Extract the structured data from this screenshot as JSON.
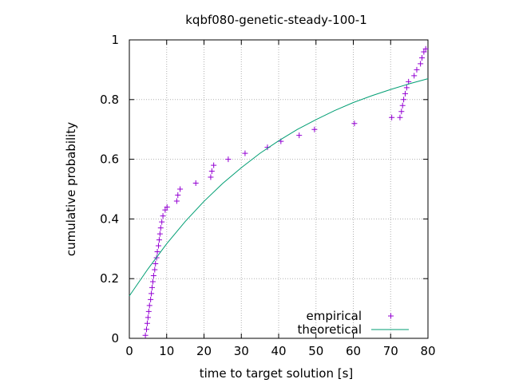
{
  "chart_data": {
    "type": "scatter",
    "title": "kqbf080-genetic-steady-100-1",
    "xlabel": "time to target solution [s]",
    "ylabel": "cumulative probability",
    "xlim": [
      0,
      80
    ],
    "ylim": [
      0,
      1
    ],
    "xticks": [
      "0",
      "10",
      "20",
      "30",
      "40",
      "50",
      "60",
      "70",
      "80"
    ],
    "yticks": [
      "0",
      "0.2",
      "0.4",
      "0.6",
      "0.8",
      "1"
    ],
    "grid": true,
    "legend_position": "bottom-right",
    "series": [
      {
        "name": "empirical",
        "kind": "points",
        "marker": "+",
        "color": "#9400d3",
        "points": [
          [
            4.3,
            0.01
          ],
          [
            4.6,
            0.03
          ],
          [
            4.8,
            0.05
          ],
          [
            5.0,
            0.07
          ],
          [
            5.2,
            0.09
          ],
          [
            5.4,
            0.11
          ],
          [
            5.7,
            0.13
          ],
          [
            5.9,
            0.15
          ],
          [
            6.1,
            0.17
          ],
          [
            6.3,
            0.19
          ],
          [
            6.5,
            0.21
          ],
          [
            6.8,
            0.23
          ],
          [
            7.0,
            0.25
          ],
          [
            7.3,
            0.27
          ],
          [
            7.5,
            0.29
          ],
          [
            7.8,
            0.31
          ],
          [
            8.0,
            0.33
          ],
          [
            8.2,
            0.35
          ],
          [
            8.4,
            0.37
          ],
          [
            8.7,
            0.39
          ],
          [
            9.0,
            0.41
          ],
          [
            9.6,
            0.43
          ],
          [
            10.1,
            0.44
          ],
          [
            12.7,
            0.46
          ],
          [
            13.0,
            0.48
          ],
          [
            13.6,
            0.5
          ],
          [
            17.8,
            0.52
          ],
          [
            21.8,
            0.54
          ],
          [
            22.1,
            0.56
          ],
          [
            22.6,
            0.58
          ],
          [
            26.5,
            0.6
          ],
          [
            31.0,
            0.62
          ],
          [
            37.0,
            0.64
          ],
          [
            40.6,
            0.66
          ],
          [
            45.5,
            0.68
          ],
          [
            49.6,
            0.7
          ],
          [
            60.3,
            0.72
          ],
          [
            70.3,
            0.74
          ],
          [
            72.5,
            0.74
          ],
          [
            72.9,
            0.76
          ],
          [
            73.2,
            0.78
          ],
          [
            73.5,
            0.8
          ],
          [
            73.9,
            0.82
          ],
          [
            74.3,
            0.84
          ],
          [
            74.8,
            0.86
          ],
          [
            76.3,
            0.88
          ],
          [
            77.0,
            0.9
          ],
          [
            78.0,
            0.92
          ],
          [
            78.4,
            0.94
          ],
          [
            78.9,
            0.96
          ],
          [
            79.4,
            0.97
          ]
        ]
      },
      {
        "name": "theoretical",
        "kind": "line",
        "color": "#009e73",
        "points": [
          [
            0,
            0.142
          ],
          [
            5,
            0.233
          ],
          [
            10,
            0.317
          ],
          [
            15,
            0.392
          ],
          [
            20,
            0.459
          ],
          [
            25,
            0.519
          ],
          [
            30,
            0.572
          ],
          [
            35,
            0.62
          ],
          [
            40,
            0.662
          ],
          [
            45,
            0.7
          ],
          [
            50,
            0.733
          ],
          [
            55,
            0.763
          ],
          [
            60,
            0.79
          ],
          [
            65,
            0.813
          ],
          [
            70,
            0.834
          ],
          [
            75,
            0.853
          ],
          [
            80,
            0.87
          ]
        ]
      }
    ]
  }
}
